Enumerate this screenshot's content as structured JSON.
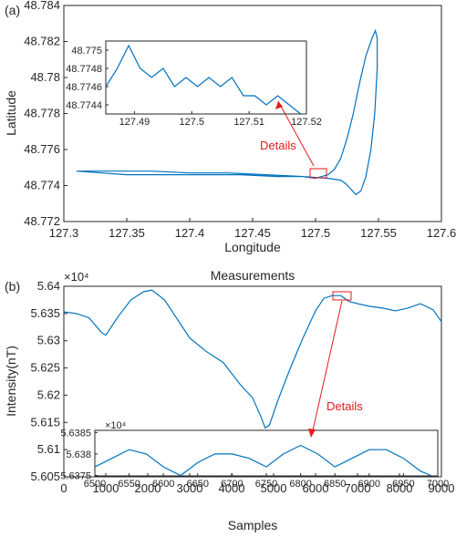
{
  "colors": {
    "line": "#0072BD",
    "annotation": "#e41a1c",
    "axis": "#262626"
  },
  "chart_data": [
    {
      "panel_label": "(a)",
      "type": "line",
      "title": "",
      "xlabel": "Longitude",
      "ylabel": "Latitude",
      "xlim": [
        127.3,
        127.6
      ],
      "ylim": [
        48.772,
        48.784
      ],
      "xticks": [
        "127.3",
        "127.35",
        "127.4",
        "127.45",
        "127.5",
        "127.55",
        "127.6"
      ],
      "yticks": [
        "48.772",
        "48.774",
        "48.776",
        "48.778",
        "48.78",
        "48.782",
        "48.784"
      ],
      "grid": false,
      "annotation": "Details",
      "series": [
        {
          "x": [
            127.31,
            127.33,
            127.35,
            127.38,
            127.41,
            127.44,
            127.47,
            127.49,
            127.5,
            127.505,
            127.51,
            127.515,
            127.52,
            127.525,
            127.53,
            127.535,
            127.54,
            127.545,
            127.5475,
            127.549,
            127.549,
            127.547,
            127.544,
            127.54,
            127.536,
            127.532,
            127.528,
            127.524,
            127.52,
            127.51,
            127.49,
            127.46,
            127.43,
            127.4,
            127.37,
            127.34,
            127.31
          ],
          "y": [
            48.7748,
            48.7747,
            48.7746,
            48.7746,
            48.7746,
            48.7746,
            48.7745,
            48.7745,
            48.7744,
            48.7745,
            48.7746,
            48.7749,
            48.7755,
            48.7766,
            48.778,
            48.7797,
            48.7812,
            48.7822,
            48.7826,
            48.7822,
            48.7805,
            48.778,
            48.776,
            48.7745,
            48.7737,
            48.7735,
            48.7738,
            48.7741,
            48.7743,
            48.7744,
            48.7745,
            48.7746,
            48.7747,
            48.7747,
            48.7748,
            48.7748,
            48.7748
          ]
        }
      ]
    },
    {
      "panel_label": "(a) inset",
      "type": "line",
      "xlim": [
        127.485,
        127.52
      ],
      "ylim": [
        48.7743,
        48.7751
      ],
      "xticks": [
        "127.49",
        "127.5",
        "127.51",
        "127.52"
      ],
      "yticks": [
        "48.7744",
        "48.7746",
        "48.7748",
        "48.775"
      ],
      "series": [
        {
          "x": [
            127.485,
            127.487,
            127.489,
            127.491,
            127.493,
            127.495,
            127.497,
            127.499,
            127.501,
            127.503,
            127.505,
            127.507,
            127.509,
            127.511,
            127.513,
            127.515,
            127.517,
            127.519
          ],
          "y": [
            48.7746,
            48.7748,
            48.77505,
            48.7748,
            48.7747,
            48.7748,
            48.7746,
            48.7747,
            48.7746,
            48.7747,
            48.7746,
            48.7747,
            48.7745,
            48.7745,
            48.7744,
            48.7745,
            48.7744,
            48.7743
          ]
        }
      ]
    },
    {
      "panel_label": "(b)",
      "type": "line",
      "title": "Measurements",
      "xlabel": "Samples",
      "ylabel": "Intensity(nT)",
      "exponent_label": "×10⁴",
      "xlim": [
        0,
        9000
      ],
      "ylim": [
        5.605,
        5.64
      ],
      "xticks": [
        "0",
        "1000",
        "2000",
        "3000",
        "4000",
        "5000",
        "6000",
        "7000",
        "8000",
        "9000"
      ],
      "yticks": [
        "5.605",
        "5.61",
        "5.615",
        "5.62",
        "5.625",
        "5.63",
        "5.635",
        "5.64"
      ],
      "grid": false,
      "annotation": "Details",
      "series": [
        {
          "x": [
            0,
            300,
            600,
            900,
            1000,
            1300,
            1600,
            1900,
            2100,
            2400,
            2700,
            3000,
            3400,
            3800,
            4200,
            4500,
            4700,
            4800,
            4900,
            5100,
            5400,
            5700,
            6000,
            6200,
            6400,
            6600,
            6800,
            7000,
            7300,
            7600,
            7900,
            8200,
            8500,
            8800,
            9000
          ],
          "y": [
            5.6353,
            5.635,
            5.6342,
            5.6315,
            5.631,
            5.6345,
            5.6375,
            5.639,
            5.6393,
            5.6375,
            5.634,
            5.6305,
            5.628,
            5.626,
            5.622,
            5.6195,
            5.616,
            5.614,
            5.6145,
            5.619,
            5.625,
            5.6305,
            5.6355,
            5.6378,
            5.6383,
            5.6383,
            5.6372,
            5.6368,
            5.6363,
            5.636,
            5.6355,
            5.636,
            5.6368,
            5.6357,
            5.6335
          ]
        }
      ]
    },
    {
      "panel_label": "(b) inset",
      "type": "line",
      "exponent_label": "×10⁴",
      "xlim": [
        6500,
        7000
      ],
      "ylim": [
        5.63749,
        5.63855
      ],
      "xticks": [
        "6500",
        "6550",
        "6600",
        "6650",
        "6700",
        "6750",
        "6800",
        "6850",
        "6900",
        "6950",
        "7000"
      ],
      "yticks": [
        "5.6375",
        "5.638",
        "5.6385"
      ],
      "series": [
        {
          "x": [
            6500,
            6525,
            6550,
            6575,
            6600,
            6625,
            6650,
            6675,
            6700,
            6725,
            6750,
            6775,
            6800,
            6825,
            6850,
            6875,
            6900,
            6925,
            6950,
            6975,
            6990
          ],
          "y": [
            5.6377,
            5.6379,
            5.6381,
            5.638,
            5.6377,
            5.6375,
            5.6378,
            5.638,
            5.638,
            5.6379,
            5.6377,
            5.638,
            5.6382,
            5.638,
            5.6377,
            5.6379,
            5.6381,
            5.6381,
            5.6379,
            5.6376,
            5.6375
          ]
        }
      ]
    }
  ]
}
